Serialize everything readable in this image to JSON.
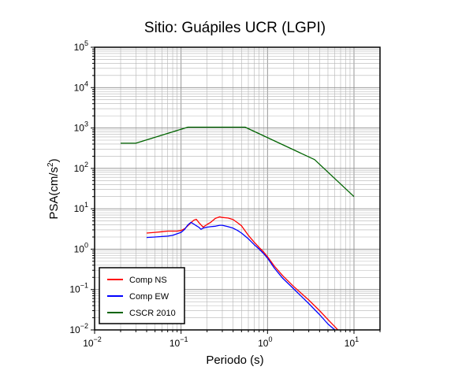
{
  "chart_data": {
    "type": "line",
    "title": "Sitio: Guápiles UCR (LGPI)",
    "xlabel": "Periodo (s)",
    "ylabel": "PSA(cm/s²)",
    "ylabel_main": "PSA(cm/s",
    "ylabel_sup": "2",
    "ylabel_tail": ")",
    "x_scale": "log",
    "y_scale": "log",
    "xlim": [
      0.01,
      20
    ],
    "ylim": [
      0.01,
      100000
    ],
    "grid": true,
    "legend_position": "bottom-left",
    "x_ticks": [
      {
        "value": 0.01,
        "base": "10",
        "exp": "−2"
      },
      {
        "value": 0.1,
        "base": "10",
        "exp": "−1"
      },
      {
        "value": 1,
        "base": "10",
        "exp": "0"
      },
      {
        "value": 10,
        "base": "10",
        "exp": "1"
      }
    ],
    "y_ticks": [
      {
        "value": 0.01,
        "base": "10",
        "exp": "−2"
      },
      {
        "value": 0.1,
        "base": "10",
        "exp": "−1"
      },
      {
        "value": 1,
        "base": "10",
        "exp": "0"
      },
      {
        "value": 10,
        "base": "10",
        "exp": "1"
      },
      {
        "value": 100,
        "base": "10",
        "exp": "2"
      },
      {
        "value": 1000,
        "base": "10",
        "exp": "3"
      },
      {
        "value": 10000,
        "base": "10",
        "exp": "4"
      },
      {
        "value": 100000,
        "base": "10",
        "exp": "5"
      }
    ],
    "series": [
      {
        "name": "Comp NS",
        "color": "#ff0000",
        "x": [
          0.04,
          0.05,
          0.06,
          0.07,
          0.08,
          0.09,
          0.1,
          0.11,
          0.12,
          0.13,
          0.14,
          0.15,
          0.16,
          0.17,
          0.18,
          0.2,
          0.22,
          0.25,
          0.28,
          0.3,
          0.35,
          0.4,
          0.45,
          0.5,
          0.6,
          0.7,
          0.8,
          0.9,
          1.0,
          1.2,
          1.5,
          2.0,
          3.0,
          4.0,
          5.0,
          6.0,
          6.5
        ],
        "values": [
          2.5,
          2.6,
          2.7,
          2.8,
          2.8,
          2.8,
          2.9,
          3.2,
          3.8,
          4.5,
          5.2,
          5.5,
          4.6,
          4.0,
          3.5,
          4.1,
          4.6,
          5.8,
          6.3,
          6.1,
          5.9,
          5.4,
          4.5,
          3.8,
          2.2,
          1.5,
          1.1,
          0.85,
          0.65,
          0.38,
          0.22,
          0.12,
          0.055,
          0.03,
          0.018,
          0.012,
          0.01
        ]
      },
      {
        "name": "Comp EW",
        "color": "#0000ff",
        "x": [
          0.04,
          0.05,
          0.06,
          0.07,
          0.08,
          0.09,
          0.1,
          0.11,
          0.12,
          0.13,
          0.14,
          0.15,
          0.16,
          0.17,
          0.18,
          0.2,
          0.22,
          0.25,
          0.28,
          0.3,
          0.35,
          0.4,
          0.45,
          0.5,
          0.6,
          0.7,
          0.8,
          0.9,
          1.0,
          1.2,
          1.5,
          2.0,
          3.0,
          4.0,
          5.0,
          6.0
        ],
        "values": [
          1.95,
          2.0,
          2.05,
          2.1,
          2.2,
          2.4,
          2.6,
          3.1,
          4.0,
          4.6,
          4.2,
          3.8,
          3.5,
          3.1,
          3.3,
          3.5,
          3.6,
          3.7,
          3.9,
          3.9,
          3.6,
          3.3,
          2.9,
          2.5,
          1.8,
          1.3,
          1.0,
          0.78,
          0.6,
          0.34,
          0.19,
          0.105,
          0.045,
          0.024,
          0.014,
          0.01
        ]
      },
      {
        "name": "CSCR 2010",
        "color": "#006400",
        "x": [
          0.02,
          0.03,
          0.12,
          0.55,
          3.5,
          10
        ],
        "values": [
          420,
          420,
          1050,
          1050,
          165,
          20
        ]
      }
    ]
  }
}
